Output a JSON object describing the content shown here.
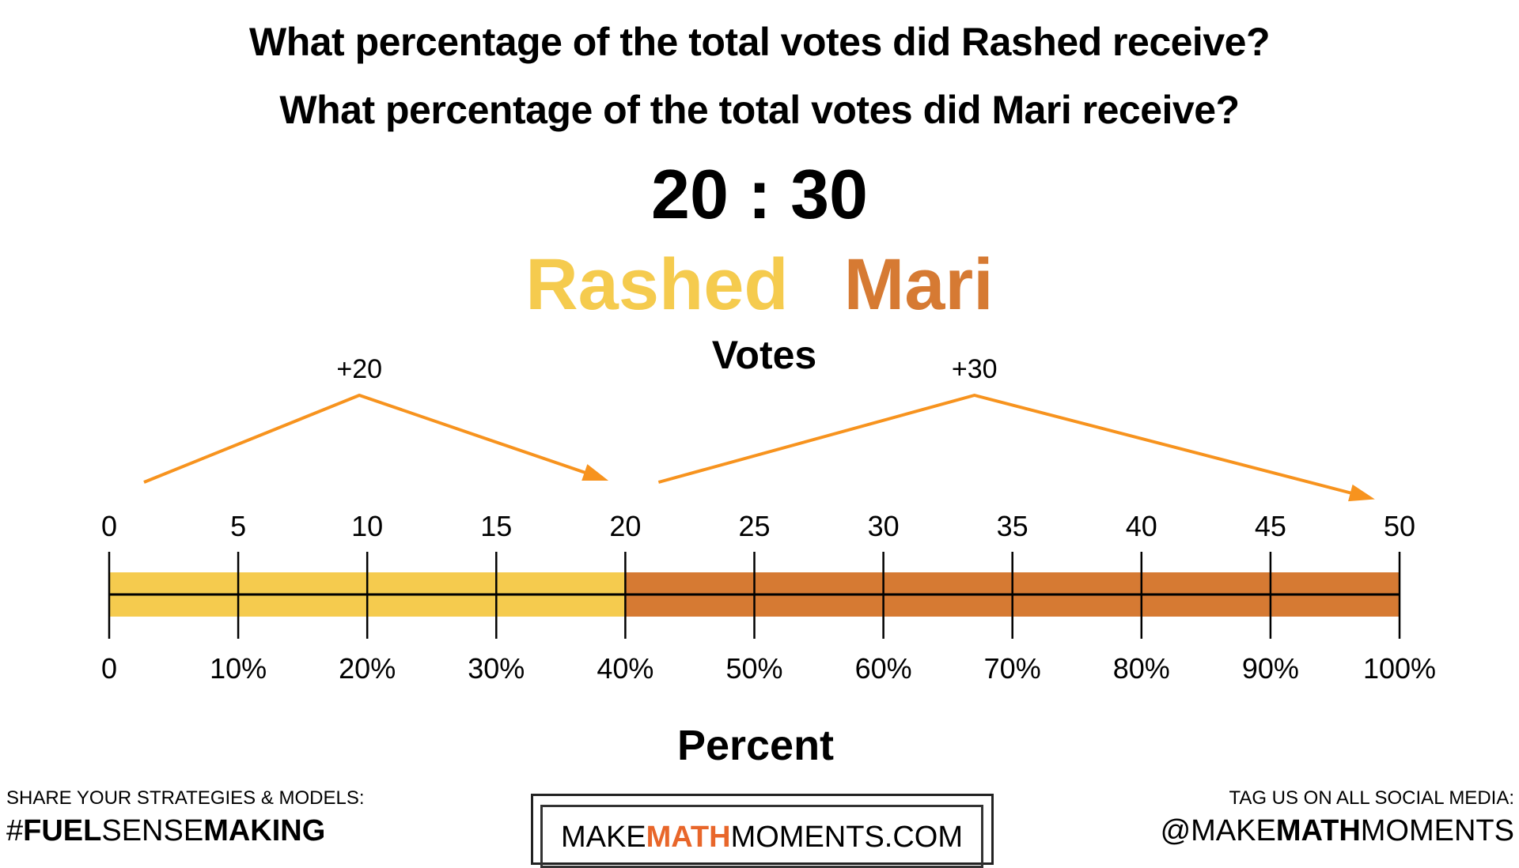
{
  "questions": [
    "What percentage of the total votes did Rashed receive?",
    "What percentage of the total votes did Mari receive?"
  ],
  "ratio": "20 : 30",
  "names": {
    "rashed": "Rashed",
    "mari": "Mari"
  },
  "colors": {
    "rashed": "#F5CB4E",
    "mari": "#D67A33",
    "arrow": "#F7931E",
    "brand_accent": "#E8662A"
  },
  "votes_label": "Votes",
  "percent_label": "Percent",
  "hops": [
    {
      "label": "+20",
      "from": 0,
      "to": 20
    },
    {
      "label": "+30",
      "from": 20,
      "to": 50
    }
  ],
  "number_line": {
    "total_votes": 50,
    "split_at": 20,
    "top_ticks": [
      "0",
      "5",
      "10",
      "15",
      "20",
      "25",
      "30",
      "35",
      "40",
      "45",
      "50"
    ],
    "bottom_ticks": [
      "0",
      "10%",
      "20%",
      "30%",
      "40%",
      "50%",
      "60%",
      "70%",
      "80%",
      "90%",
      "100%"
    ]
  },
  "footer": {
    "left_small": "SHARE YOUR STRATEGIES & MODELS:",
    "left_hash": "#",
    "left_bold1": "FUEL",
    "left_light": "SENSE",
    "left_bold2": "MAKING",
    "logo_make": "MAKE",
    "logo_math": "MATH",
    "logo_rest": "MOMENTS.COM",
    "right_small": "TAG US ON ALL SOCIAL MEDIA:",
    "right_at": "@MAKE",
    "right_bold": "MATH",
    "right_rest": "MOMENTS"
  }
}
